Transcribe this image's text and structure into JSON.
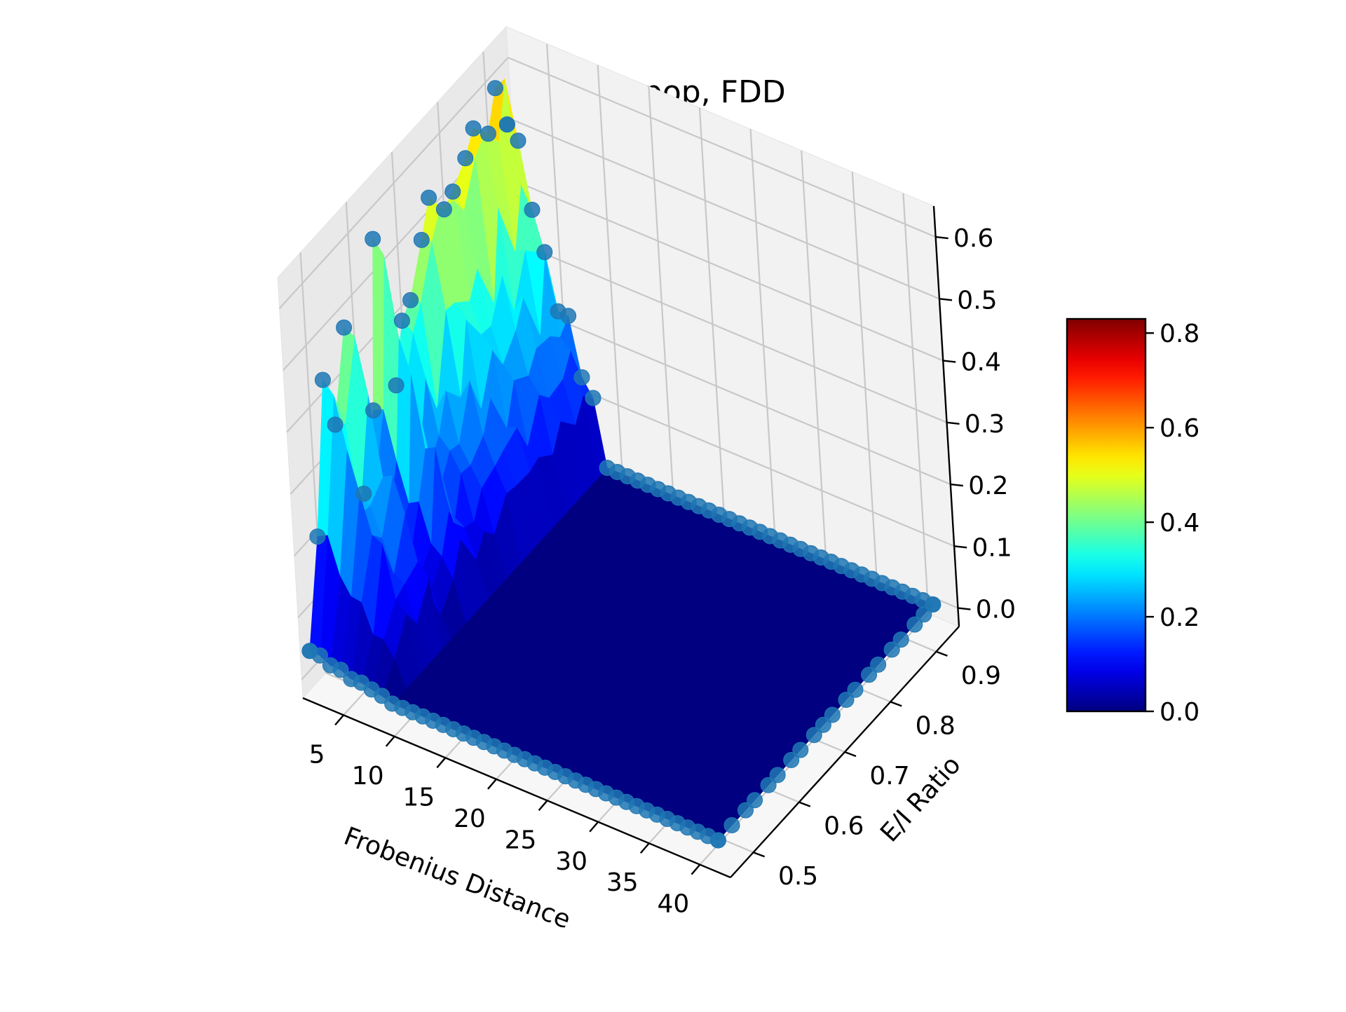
{
  "chart_data": {
    "type": "surface3d",
    "title": "post, entire pop, FDD",
    "xlabel": "Frobenius Distance",
    "ylabel": "E/I Ratio",
    "zlabel": "",
    "x_ticks": [
      "5",
      "10",
      "15",
      "20",
      "25",
      "30",
      "35",
      "40"
    ],
    "y_ticks": [
      "0.5",
      "0.6",
      "0.7",
      "0.8",
      "0.9"
    ],
    "z_ticks": [
      "0.0",
      "0.1",
      "0.2",
      "0.3",
      "0.4",
      "0.5",
      "0.6"
    ],
    "xlim": [
      1,
      43
    ],
    "ylim": [
      0.45,
      0.95
    ],
    "zlim": [
      -0.03,
      0.65
    ],
    "colormap": "jet",
    "colorbar": {
      "range": [
        0,
        0.83
      ],
      "ticks": [
        "0.0",
        "0.2",
        "0.4",
        "0.6",
        "0.8"
      ]
    },
    "marker_color": "#1f77b4",
    "nonzero_x_range": [
      1,
      9
    ],
    "peak_profile_x1": [
      {
        "y": 0.47,
        "z": 0.03
      },
      {
        "y": 0.5,
        "z": 0.2
      },
      {
        "y": 0.53,
        "z": 0.42
      },
      {
        "y": 0.55,
        "z": 0.34
      },
      {
        "y": 0.58,
        "z": 0.47
      },
      {
        "y": 0.6,
        "z": 0.18
      },
      {
        "y": 0.63,
        "z": 0.3
      },
      {
        "y": 0.65,
        "z": 0.55
      },
      {
        "y": 0.68,
        "z": 0.3
      },
      {
        "y": 0.7,
        "z": 0.38
      },
      {
        "y": 0.72,
        "z": 0.4
      },
      {
        "y": 0.75,
        "z": 0.48
      },
      {
        "y": 0.77,
        "z": 0.52
      },
      {
        "y": 0.8,
        "z": 0.5
      },
      {
        "y": 0.82,
        "z": 0.49
      },
      {
        "y": 0.85,
        "z": 0.53
      },
      {
        "y": 0.87,
        "z": 0.56
      },
      {
        "y": 0.9,
        "z": 0.52
      },
      {
        "y": 0.92,
        "z": 0.6
      },
      {
        "y": 0.94,
        "z": 0.5
      }
    ]
  }
}
